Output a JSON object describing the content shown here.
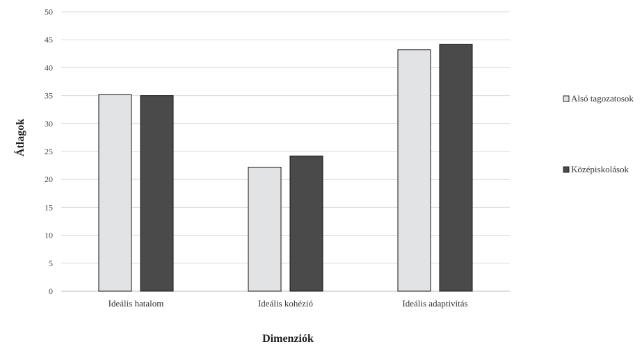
{
  "chart_data": {
    "type": "bar",
    "title": "",
    "xlabel": "Dimenziók",
    "ylabel": "Átlagok",
    "categories": [
      "Ideális hatalom",
      "Ideális kohézió",
      "Ideális adaptivitás"
    ],
    "series": [
      {
        "name": "Alsó tagozatosok",
        "values": [
          35.2,
          22.2,
          43.2
        ],
        "color": "#e2e3e5"
      },
      {
        "name": "Középiskolások",
        "values": [
          35.0,
          24.2,
          44.2
        ],
        "color": "#4a4a4a"
      }
    ],
    "ylim": [
      0,
      50
    ],
    "yticks": [
      0,
      5,
      10,
      15,
      20,
      25,
      30,
      35,
      40,
      45,
      50
    ],
    "grid": true,
    "legend_position": "right"
  }
}
